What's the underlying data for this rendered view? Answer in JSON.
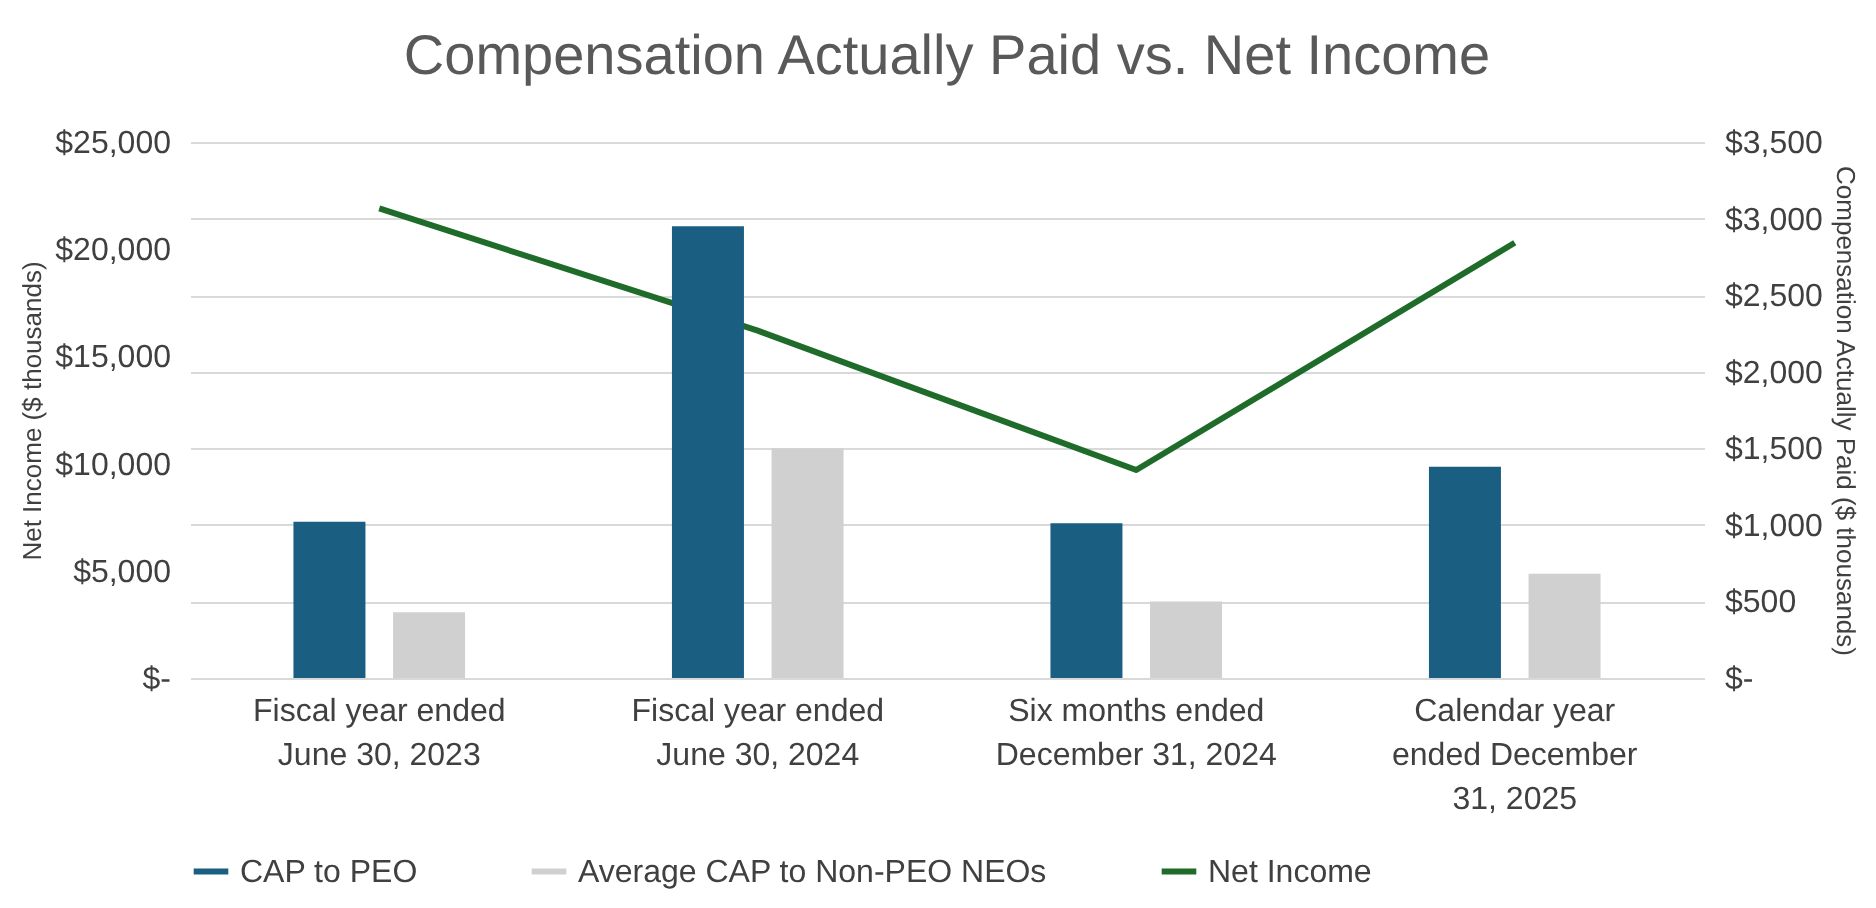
{
  "chart_data": {
    "type": "bar",
    "title": "Compensation Actually Paid vs. Net Income",
    "categories": [
      "Fiscal year ended June 30, 2023",
      "Fiscal year ended June 30, 2024",
      "Six months ended December 31, 2024",
      "Calendar year ended December 31, 2025"
    ],
    "series": [
      {
        "name": "CAP to PEO",
        "color": "#1a5e82",
        "axis": "y2",
        "values": [
          1020,
          2950,
          1010,
          1380
        ]
      },
      {
        "name": "Average CAP to Non-PEO NEOs",
        "color": "#d0d0d0",
        "axis": "y2",
        "values": [
          430,
          1500,
          500,
          680
        ]
      },
      {
        "name": "Net Income",
        "color": "#1e6b2a",
        "type": "line",
        "axis": "y",
        "values": [
          21900,
          16200,
          9700,
          20300
        ]
      }
    ],
    "ylabel": "Net Income ($ thousands)",
    "y2label": "Compensation Actually Paid ($ thousands)",
    "ylim": [
      0,
      25000
    ],
    "yticks": [
      {
        "value": 0,
        "label": "$-"
      },
      {
        "value": 5000,
        "label": "$5,000"
      },
      {
        "value": 10000,
        "label": "$10,000"
      },
      {
        "value": 15000,
        "label": "$15,000"
      },
      {
        "value": 20000,
        "label": "$20,000"
      },
      {
        "value": 25000,
        "label": "$25,000"
      }
    ],
    "y2lim": [
      0,
      3500
    ],
    "y2ticks": [
      {
        "value": 0,
        "label": "$-"
      },
      {
        "value": 500,
        "label": "$500"
      },
      {
        "value": 1000,
        "label": "$1,000"
      },
      {
        "value": 1500,
        "label": "$1,500"
      },
      {
        "value": 2000,
        "label": "$2,000"
      },
      {
        "value": 2500,
        "label": "$2,500"
      },
      {
        "value": 3000,
        "label": "$3,000"
      },
      {
        "value": 3500,
        "label": "$3,500"
      }
    ],
    "grid": "y",
    "legend": "bottom",
    "marker": "none",
    "line_style": "solid"
  }
}
